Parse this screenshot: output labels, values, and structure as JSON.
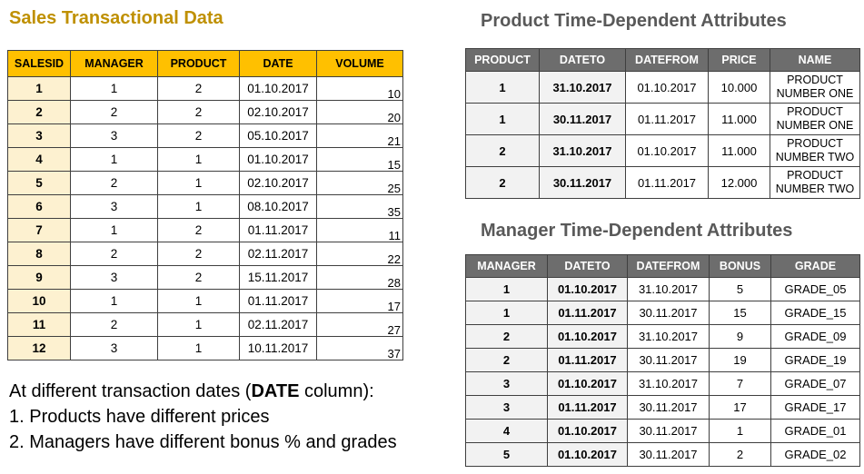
{
  "sales_table": {
    "title": "Sales Transactional Data",
    "headers": [
      "SALESID",
      "MANAGER",
      "PRODUCT",
      "DATE",
      "VOLUME"
    ],
    "rows": [
      [
        "1",
        "1",
        "2",
        "01.10.2017",
        "10"
      ],
      [
        "2",
        "2",
        "2",
        "02.10.2017",
        "20"
      ],
      [
        "3",
        "3",
        "2",
        "05.10.2017",
        "21"
      ],
      [
        "4",
        "1",
        "1",
        "01.10.2017",
        "15"
      ],
      [
        "5",
        "2",
        "1",
        "02.10.2017",
        "25"
      ],
      [
        "6",
        "3",
        "1",
        "08.10.2017",
        "35"
      ],
      [
        "7",
        "1",
        "2",
        "01.11.2017",
        "11"
      ],
      [
        "8",
        "2",
        "2",
        "02.11.2017",
        "22"
      ],
      [
        "9",
        "3",
        "2",
        "15.11.2017",
        "28"
      ],
      [
        "10",
        "1",
        "1",
        "01.11.2017",
        "17"
      ],
      [
        "11",
        "2",
        "1",
        "02.11.2017",
        "27"
      ],
      [
        "12",
        "3",
        "1",
        "10.11.2017",
        "37"
      ]
    ]
  },
  "product_table": {
    "title": "Product Time-Dependent Attributes",
    "headers": [
      "PRODUCT",
      "DATETO",
      "DATEFROM",
      "PRICE",
      "NAME"
    ],
    "rows": [
      [
        "1",
        "31.10.2017",
        "01.10.2017",
        "10.000",
        "PRODUCT NUMBER ONE"
      ],
      [
        "1",
        "30.11.2017",
        "01.11.2017",
        "11.000",
        "PRODUCT NUMBER ONE"
      ],
      [
        "2",
        "31.10.2017",
        "01.10.2017",
        "11.000",
        "PRODUCT NUMBER TWO"
      ],
      [
        "2",
        "30.11.2017",
        "01.11.2017",
        "12.000",
        "PRODUCT NUMBER TWO"
      ]
    ]
  },
  "manager_table": {
    "title": "Manager Time-Dependent Attributes",
    "headers": [
      "MANAGER",
      "DATETO",
      "DATEFROM",
      "BONUS",
      "GRADE"
    ],
    "rows": [
      [
        "1",
        "01.10.2017",
        "31.10.2017",
        "5",
        "GRADE_05"
      ],
      [
        "1",
        "01.11.2017",
        "30.11.2017",
        "15",
        "GRADE_15"
      ],
      [
        "2",
        "01.10.2017",
        "31.10.2017",
        "9",
        "GRADE_09"
      ],
      [
        "2",
        "01.11.2017",
        "30.11.2017",
        "19",
        "GRADE_19"
      ],
      [
        "3",
        "01.10.2017",
        "31.10.2017",
        "7",
        "GRADE_07"
      ],
      [
        "3",
        "01.11.2017",
        "30.11.2017",
        "17",
        "GRADE_17"
      ],
      [
        "4",
        "01.10.2017",
        "30.11.2017",
        "1",
        "GRADE_01"
      ],
      [
        "5",
        "01.10.2017",
        "30.11.2017",
        "2",
        "GRADE_02"
      ]
    ]
  },
  "note": {
    "line1_prefix": "At different transaction dates (",
    "line1_bold": "DATE",
    "line1_suffix": " column):",
    "line2": "1. Products have different prices",
    "line3": "2. Managers have different bonus % and grades"
  },
  "colors": {
    "sales_header_bg": "#FFC000",
    "sales_id_col_bg": "#FDF1D0",
    "sales_title": "#BF9000",
    "gray_header_bg": "#6d6d6d",
    "gray_key_col_bg": "#F2F2F2",
    "gray_title": "#595959",
    "border": "#3f3f3f"
  }
}
